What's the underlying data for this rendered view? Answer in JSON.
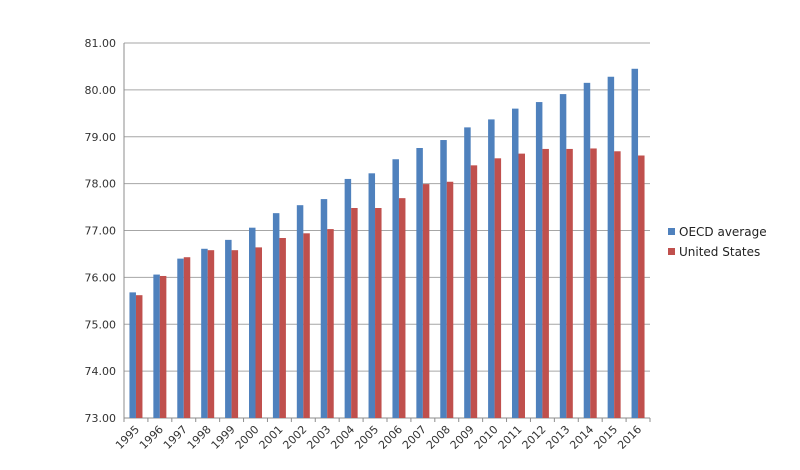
{
  "chart_data": {
    "type": "bar",
    "categories": [
      "1995",
      "1996",
      "1997",
      "1998",
      "1999",
      "2000",
      "2001",
      "2002",
      "2003",
      "2004",
      "2005",
      "2006",
      "2007",
      "2008",
      "2009",
      "2010",
      "2011",
      "2012",
      "2013",
      "2014",
      "2015",
      "2016"
    ],
    "series": [
      {
        "name": "OECD average",
        "color": "#4f81bd",
        "values": [
          75.68,
          76.06,
          76.4,
          76.61,
          76.8,
          77.06,
          77.37,
          77.54,
          77.67,
          78.1,
          78.22,
          78.52,
          78.76,
          78.93,
          79.2,
          79.37,
          79.6,
          79.74,
          79.91,
          80.15,
          80.28,
          80.45
        ]
      },
      {
        "name": "United States",
        "color": "#c0504d",
        "values": [
          75.62,
          76.03,
          76.43,
          76.58,
          76.58,
          76.64,
          76.84,
          76.94,
          77.03,
          77.48,
          77.48,
          77.69,
          77.99,
          78.04,
          78.39,
          78.54,
          78.64,
          78.74,
          78.74,
          78.75,
          78.69,
          78.6
        ]
      }
    ],
    "yticks": [
      "73.00",
      "74.00",
      "75.00",
      "76.00",
      "77.00",
      "78.00",
      "79.00",
      "80.00",
      "81.00"
    ],
    "ylim": [
      73,
      81
    ],
    "grid": true,
    "legend_position": "right",
    "title": "",
    "xlabel": "",
    "ylabel": ""
  }
}
